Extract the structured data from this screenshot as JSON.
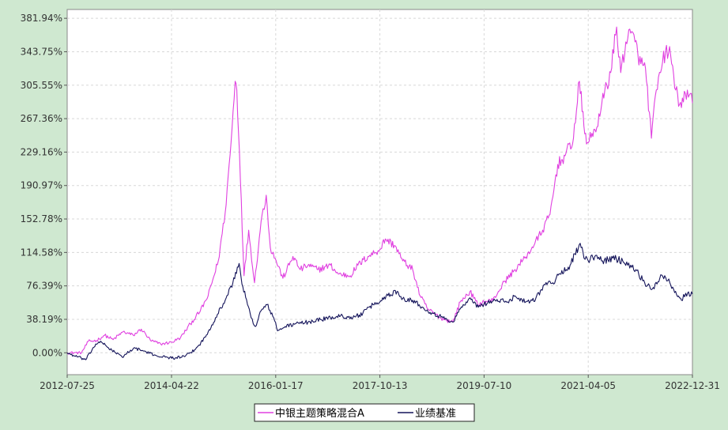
{
  "chart_data": {
    "type": "line",
    "title": "",
    "xlabel": "",
    "ylabel": "",
    "x_ticks": [
      "2012-07-25",
      "2014-04-22",
      "2016-01-17",
      "2017-10-13",
      "2019-07-10",
      "2021-04-05",
      "2022-12-31"
    ],
    "y_ticks": [
      "381.94%",
      "343.75%",
      "305.55%",
      "267.36%",
      "229.16%",
      "190.97%",
      "152.78%",
      "114.58%",
      "76.39%",
      "38.19%",
      "0.00%"
    ],
    "y_tick_values": [
      381.94,
      343.75,
      305.55,
      267.36,
      229.16,
      190.97,
      152.78,
      114.58,
      76.39,
      38.19,
      0.0
    ],
    "xlim": [
      "2012-07-25",
      "2022-12-31"
    ],
    "ylim": [
      -25,
      392
    ],
    "grid": true,
    "legend_position": "bottom-center",
    "colors": {
      "page_background": "#cfe8d0",
      "plot_background": "#ffffff",
      "grid": "#d8d8d8"
    },
    "series": [
      {
        "name": "中银主题策略混合A",
        "color": "#e040e0",
        "points": [
          [
            "2012-07-25",
            0
          ],
          [
            "2012-10-20",
            0
          ],
          [
            "2012-12-01",
            13
          ],
          [
            "2013-01-20",
            14
          ],
          [
            "2013-03-10",
            20
          ],
          [
            "2013-05-01",
            15
          ],
          [
            "2013-07-01",
            24
          ],
          [
            "2013-09-01",
            20
          ],
          [
            "2013-10-20",
            27
          ],
          [
            "2013-12-15",
            14
          ],
          [
            "2014-02-15",
            10
          ],
          [
            "2014-04-22",
            12
          ],
          [
            "2014-06-15",
            17
          ],
          [
            "2014-08-15",
            33
          ],
          [
            "2014-10-15",
            48
          ],
          [
            "2014-12-01",
            65
          ],
          [
            "2015-02-01",
            105
          ],
          [
            "2015-03-15",
            160
          ],
          [
            "2015-04-20",
            240
          ],
          [
            "2015-05-15",
            310
          ],
          [
            "2015-05-25",
            300
          ],
          [
            "2015-06-10",
            230
          ],
          [
            "2015-07-08",
            88
          ],
          [
            "2015-08-05",
            140
          ],
          [
            "2015-09-10",
            80
          ],
          [
            "2015-10-20",
            150
          ],
          [
            "2015-11-20",
            180
          ],
          [
            "2015-12-15",
            120
          ],
          [
            "2016-01-20",
            105
          ],
          [
            "2016-03-01",
            85
          ],
          [
            "2016-05-01",
            110
          ],
          [
            "2016-06-15",
            95
          ],
          [
            "2016-08-01",
            100
          ],
          [
            "2016-10-01",
            95
          ],
          [
            "2016-12-15",
            100
          ],
          [
            "2017-02-01",
            90
          ],
          [
            "2017-04-15",
            88
          ],
          [
            "2017-06-01",
            100
          ],
          [
            "2017-08-01",
            110
          ],
          [
            "2017-10-13",
            118
          ],
          [
            "2017-11-15",
            130
          ],
          [
            "2018-01-15",
            122
          ],
          [
            "2018-03-01",
            105
          ],
          [
            "2018-05-01",
            95
          ],
          [
            "2018-06-15",
            65
          ],
          [
            "2018-08-01",
            50
          ],
          [
            "2018-10-15",
            40
          ],
          [
            "2018-12-31",
            35
          ],
          [
            "2019-02-15",
            58
          ],
          [
            "2019-04-15",
            70
          ],
          [
            "2019-06-01",
            55
          ],
          [
            "2019-07-10",
            58
          ],
          [
            "2019-09-01",
            60
          ],
          [
            "2019-11-15",
            82
          ],
          [
            "2020-01-15",
            95
          ],
          [
            "2020-03-15",
            108
          ],
          [
            "2020-05-15",
            125
          ],
          [
            "2020-07-01",
            140
          ],
          [
            "2020-08-15",
            158
          ],
          [
            "2020-10-01",
            215
          ],
          [
            "2020-11-15",
            225
          ],
          [
            "2021-01-05",
            245
          ],
          [
            "2021-02-10",
            310
          ],
          [
            "2021-03-15",
            250
          ],
          [
            "2021-04-05",
            240
          ],
          [
            "2021-05-15",
            255
          ],
          [
            "2021-06-15",
            270
          ],
          [
            "2021-07-15",
            300
          ],
          [
            "2021-08-20",
            320
          ],
          [
            "2021-09-25",
            372
          ],
          [
            "2021-10-20",
            320
          ],
          [
            "2021-11-20",
            355
          ],
          [
            "2021-12-20",
            365
          ],
          [
            "2022-01-15",
            355
          ],
          [
            "2022-02-20",
            330
          ],
          [
            "2022-03-20",
            325
          ],
          [
            "2022-04-25",
            245
          ],
          [
            "2022-05-25",
            300
          ],
          [
            "2022-06-20",
            320
          ],
          [
            "2022-07-20",
            345
          ],
          [
            "2022-08-20",
            340
          ],
          [
            "2022-09-20",
            300
          ],
          [
            "2022-10-25",
            280
          ],
          [
            "2022-11-30",
            300
          ],
          [
            "2022-12-31",
            285
          ]
        ]
      },
      {
        "name": "业绩基准",
        "color": "#14145a",
        "points": [
          [
            "2012-07-25",
            0
          ],
          [
            "2012-09-01",
            -3
          ],
          [
            "2012-11-15",
            -8
          ],
          [
            "2013-01-15",
            10
          ],
          [
            "2013-02-20",
            12
          ],
          [
            "2013-04-01",
            6
          ],
          [
            "2013-06-25",
            -5
          ],
          [
            "2013-08-15",
            3
          ],
          [
            "2013-09-15",
            5
          ],
          [
            "2013-11-01",
            2
          ],
          [
            "2014-01-15",
            -3
          ],
          [
            "2014-03-15",
            -5
          ],
          [
            "2014-05-15",
            -6
          ],
          [
            "2014-07-15",
            -4
          ],
          [
            "2014-09-15",
            4
          ],
          [
            "2014-11-15",
            18
          ],
          [
            "2015-01-15",
            40
          ],
          [
            "2015-03-15",
            60
          ],
          [
            "2015-05-01",
            80
          ],
          [
            "2015-06-08",
            102
          ],
          [
            "2015-07-01",
            75
          ],
          [
            "2015-08-20",
            40
          ],
          [
            "2015-09-15",
            30
          ],
          [
            "2015-10-20",
            48
          ],
          [
            "2015-11-25",
            55
          ],
          [
            "2016-01-05",
            40
          ],
          [
            "2016-01-28",
            25
          ],
          [
            "2016-03-15",
            30
          ],
          [
            "2016-05-15",
            33
          ],
          [
            "2016-08-01",
            35
          ],
          [
            "2016-10-15",
            38
          ],
          [
            "2016-12-15",
            40
          ],
          [
            "2017-02-15",
            42
          ],
          [
            "2017-05-01",
            40
          ],
          [
            "2017-07-01",
            45
          ],
          [
            "2017-09-01",
            55
          ],
          [
            "2017-10-13",
            58
          ],
          [
            "2017-11-20",
            65
          ],
          [
            "2018-01-26",
            70
          ],
          [
            "2018-03-01",
            62
          ],
          [
            "2018-05-01",
            60
          ],
          [
            "2018-07-01",
            52
          ],
          [
            "2018-09-01",
            45
          ],
          [
            "2018-11-01",
            40
          ],
          [
            "2018-12-31",
            35
          ],
          [
            "2019-02-15",
            50
          ],
          [
            "2019-04-10",
            62
          ],
          [
            "2019-06-05",
            52
          ],
          [
            "2019-07-10",
            56
          ],
          [
            "2019-09-15",
            60
          ],
          [
            "2019-12-01",
            58
          ],
          [
            "2020-01-15",
            65
          ],
          [
            "2020-03-20",
            58
          ],
          [
            "2020-05-20",
            62
          ],
          [
            "2020-07-10",
            78
          ],
          [
            "2020-09-01",
            80
          ],
          [
            "2020-10-15",
            90
          ],
          [
            "2020-12-15",
            100
          ],
          [
            "2021-02-15",
            125
          ],
          [
            "2021-03-10",
            108
          ],
          [
            "2021-04-05",
            105
          ],
          [
            "2021-05-15",
            110
          ],
          [
            "2021-07-01",
            105
          ],
          [
            "2021-09-01",
            108
          ],
          [
            "2021-11-01",
            105
          ],
          [
            "2021-12-20",
            100
          ],
          [
            "2022-01-20",
            95
          ],
          [
            "2022-03-15",
            80
          ],
          [
            "2022-04-25",
            72
          ],
          [
            "2022-06-15",
            85
          ],
          [
            "2022-07-15",
            88
          ],
          [
            "2022-08-15",
            80
          ],
          [
            "2022-10-25",
            60
          ],
          [
            "2022-11-20",
            68
          ],
          [
            "2022-12-31",
            67
          ]
        ]
      }
    ]
  }
}
